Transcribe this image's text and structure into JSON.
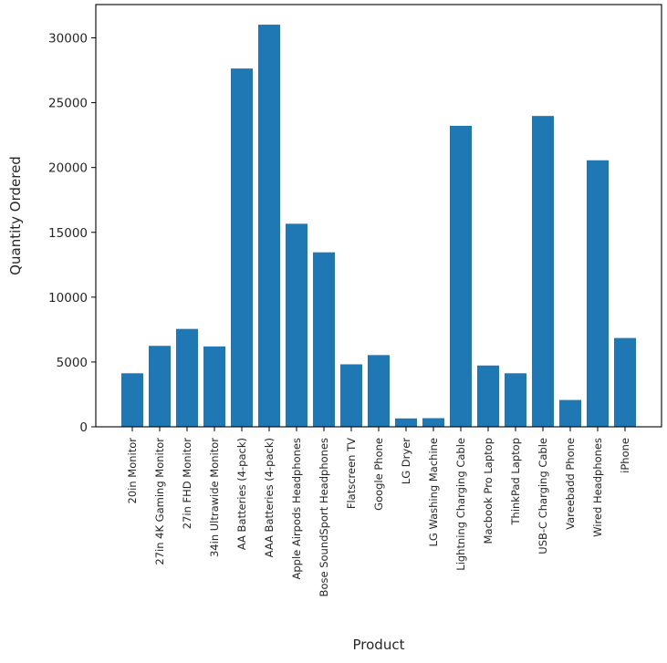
{
  "chart_data": {
    "type": "bar",
    "title": "",
    "xlabel": "Product",
    "ylabel": "Quantity Ordered",
    "categories": [
      "20in Monitor",
      "27in 4K Gaming Monitor",
      "27in FHD Monitor",
      "34in Ultrawide Monitor",
      "AA Batteries (4-pack)",
      "AAA Batteries (4-pack)",
      "Apple Airpods Headphones",
      "Bose SoundSport Headphones",
      "Flatscreen TV",
      "Google Phone",
      "LG Dryer",
      "LG Washing Machine",
      "Lightning Charging Cable",
      "Macbook Pro Laptop",
      "ThinkPad Laptop",
      "USB-C Charging Cable",
      "Vareebadd Phone",
      "Wired Headphones",
      "iPhone"
    ],
    "values": [
      4129,
      6244,
      7550,
      6199,
      27635,
      31017,
      15661,
      13457,
      4819,
      5532,
      646,
      666,
      23217,
      4728,
      4130,
      23975,
      2068,
      20557,
      6849
    ],
    "ylim": [
      0,
      32568
    ],
    "yticks": [
      0,
      5000,
      10000,
      15000,
      20000,
      25000,
      30000
    ],
    "ytick_labels": [
      "0",
      "5000",
      "10000",
      "15000",
      "20000",
      "25000",
      "30000"
    ],
    "xtick_rotation": 90,
    "grid": false,
    "legend": null,
    "bar_color": "#1f77b4"
  }
}
